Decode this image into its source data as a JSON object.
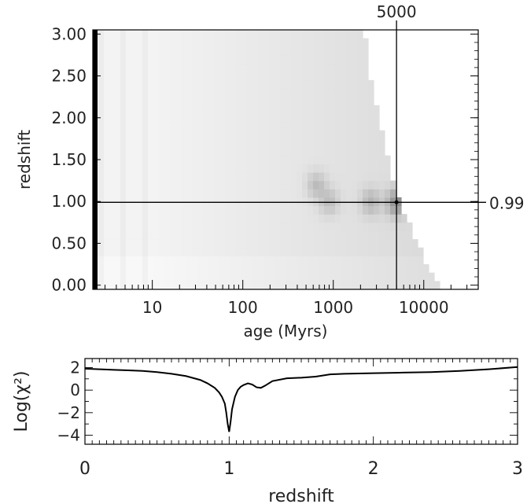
{
  "chart_data": [
    {
      "type": "heatmap",
      "xlabel": "age (Myrs)",
      "ylabel": "redshift",
      "x_scale": "log",
      "xlim": [
        2.2,
        40000
      ],
      "ylim": [
        -0.05,
        3.05
      ],
      "x_ticks": [
        10,
        100,
        1000,
        10000
      ],
      "x_tick_labels": [
        "10",
        "100",
        "1000",
        "10000"
      ],
      "y_ticks": [
        0.0,
        0.5,
        1.0,
        1.5,
        2.0,
        2.5,
        3.0
      ],
      "y_tick_labels": [
        "0.00",
        "0.50",
        "1.00",
        "1.50",
        "2.00",
        "2.50",
        "3.00"
      ],
      "marker_age": 5000,
      "marker_age_label": "5000",
      "marker_redshift": 0.99,
      "marker_redshift_label": "0.99",
      "colormap": "grayscale (darker = lower chi-squared)",
      "age_limit_curve": [
        [
          0.0,
          16000
        ],
        [
          0.1,
          13500
        ],
        [
          0.2,
          11500
        ],
        [
          0.3,
          10300
        ],
        [
          0.4,
          9300
        ],
        [
          0.5,
          8400
        ],
        [
          0.6,
          7600
        ],
        [
          0.7,
          7000
        ],
        [
          0.8,
          6400
        ],
        [
          0.9,
          5900
        ],
        [
          1.0,
          5500
        ],
        [
          1.1,
          5100
        ],
        [
          1.2,
          4800
        ],
        [
          1.3,
          4500
        ],
        [
          1.4,
          4250
        ],
        [
          1.5,
          4000
        ],
        [
          1.6,
          3800
        ],
        [
          1.7,
          3600
        ],
        [
          1.8,
          3450
        ],
        [
          1.9,
          3300
        ],
        [
          2.0,
          3150
        ],
        [
          2.1,
          3000
        ],
        [
          2.2,
          2900
        ],
        [
          2.3,
          2800
        ],
        [
          2.4,
          2700
        ],
        [
          2.5,
          2600
        ],
        [
          2.6,
          2500
        ],
        [
          2.7,
          2450
        ],
        [
          2.8,
          2400
        ],
        [
          2.9,
          2300
        ],
        [
          3.0,
          2250
        ]
      ],
      "dark_features": [
        {
          "age": 5000,
          "redshift": 0.99,
          "strength": 1.0
        },
        {
          "age": 2600,
          "redshift": 1.0,
          "strength": 0.55
        },
        {
          "age": 900,
          "redshift": 1.0,
          "strength": 0.45
        },
        {
          "age": 650,
          "redshift": 1.2,
          "strength": 0.5
        }
      ]
    },
    {
      "type": "line",
      "xlabel": "redshift",
      "ylabel": "Log(χ²)",
      "xlim": [
        0,
        3
      ],
      "ylim": [
        -4.8,
        2.8
      ],
      "x_ticks": [
        0,
        1,
        2,
        3
      ],
      "x_tick_labels": [
        "0",
        "1",
        "2",
        "3"
      ],
      "y_ticks": [
        -4,
        -2,
        0,
        2
      ],
      "y_tick_labels": [
        "−4",
        "−2",
        "0",
        "2"
      ],
      "series": [
        {
          "x": [
            0.0,
            0.1,
            0.2,
            0.3,
            0.4,
            0.5,
            0.6,
            0.7,
            0.8,
            0.85,
            0.9,
            0.93,
            0.95,
            0.97,
            0.98,
            0.99,
            1.0,
            1.01,
            1.02,
            1.04,
            1.06,
            1.08,
            1.1,
            1.13,
            1.16,
            1.19,
            1.22,
            1.25,
            1.3,
            1.4,
            1.5,
            1.6,
            1.7,
            1.8,
            2.0,
            2.2,
            2.4,
            2.6,
            2.8,
            3.0
          ],
          "y": [
            1.9,
            1.85,
            1.8,
            1.75,
            1.7,
            1.6,
            1.45,
            1.25,
            0.9,
            0.6,
            0.2,
            -0.2,
            -0.6,
            -1.2,
            -2.0,
            -3.0,
            -3.7,
            -2.8,
            -1.7,
            -0.6,
            0.0,
            0.3,
            0.45,
            0.6,
            0.5,
            0.25,
            0.2,
            0.4,
            0.8,
            1.05,
            1.1,
            1.2,
            1.4,
            1.45,
            1.5,
            1.55,
            1.6,
            1.7,
            1.85,
            2.05
          ]
        }
      ]
    }
  ]
}
